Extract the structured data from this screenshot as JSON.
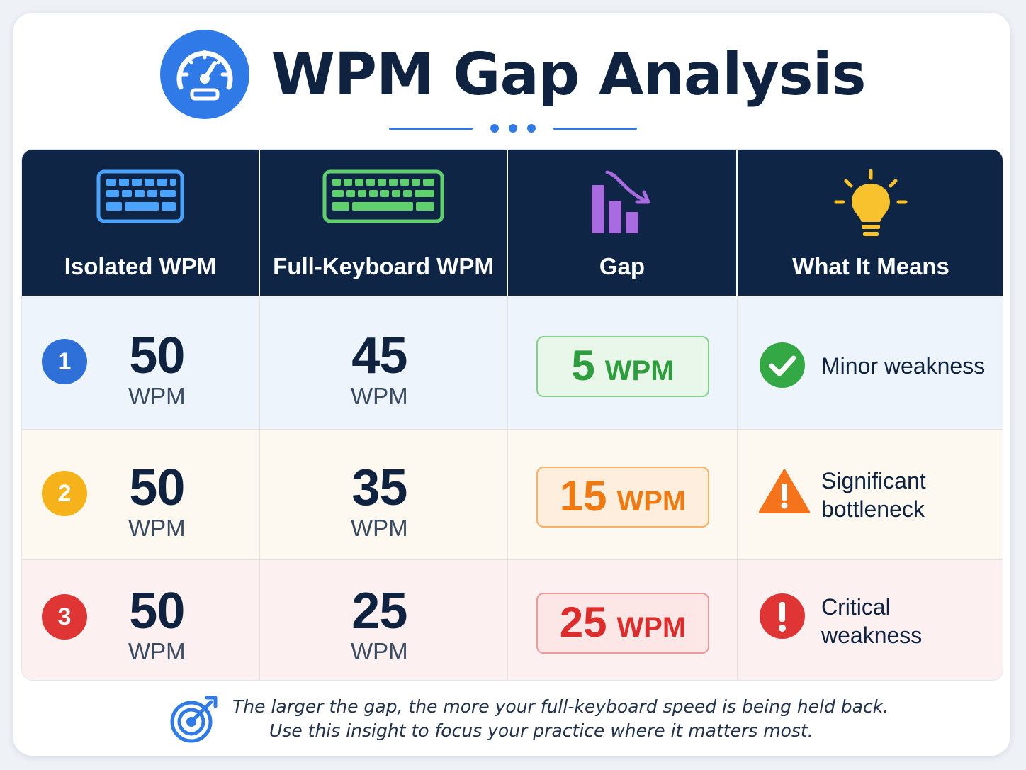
{
  "header": {
    "title": "WPM Gap Analysis",
    "logo_icon": "speedometer-icon"
  },
  "table": {
    "columns": [
      {
        "label": "Isolated WPM",
        "icon": "keyboard-icon",
        "color": "#4aa3ff"
      },
      {
        "label": "Full-Keyboard WPM",
        "icon": "full-keyboard-icon",
        "color": "#5fd06c"
      },
      {
        "label": "Gap",
        "icon": "declining-bar-chart-icon",
        "color": "#a86ce0"
      },
      {
        "label": "What It Means",
        "icon": "lightbulb-icon",
        "color": "#f7c22e"
      }
    ],
    "rows": [
      {
        "number": "1",
        "badge_color": "#2f6fd8",
        "isolated": "50",
        "isolated_unit": "WPM",
        "full": "45",
        "full_unit": "WPM",
        "gap": "5",
        "gap_unit": "WPM",
        "gap_tone": "green",
        "meaning": "Minor weakness",
        "meaning_icon": "check-circle-icon"
      },
      {
        "number": "2",
        "badge_color": "#f6b21b",
        "isolated": "50",
        "isolated_unit": "WPM",
        "full": "35",
        "full_unit": "WPM",
        "gap": "15",
        "gap_unit": "WPM",
        "gap_tone": "orange",
        "meaning": "Significant bottleneck",
        "meaning_icon": "warning-triangle-icon"
      },
      {
        "number": "3",
        "badge_color": "#e03535",
        "isolated": "50",
        "isolated_unit": "WPM",
        "full": "25",
        "full_unit": "WPM",
        "gap": "25",
        "gap_unit": "WPM",
        "gap_tone": "red",
        "meaning": "Critical weakness",
        "meaning_icon": "exclamation-circle-icon"
      }
    ]
  },
  "footer": {
    "icon": "target-icon",
    "line1": "The larger the gap, the more your full-keyboard speed is being held back.",
    "line2": "Use this insight to focus your practice where it matters most."
  }
}
